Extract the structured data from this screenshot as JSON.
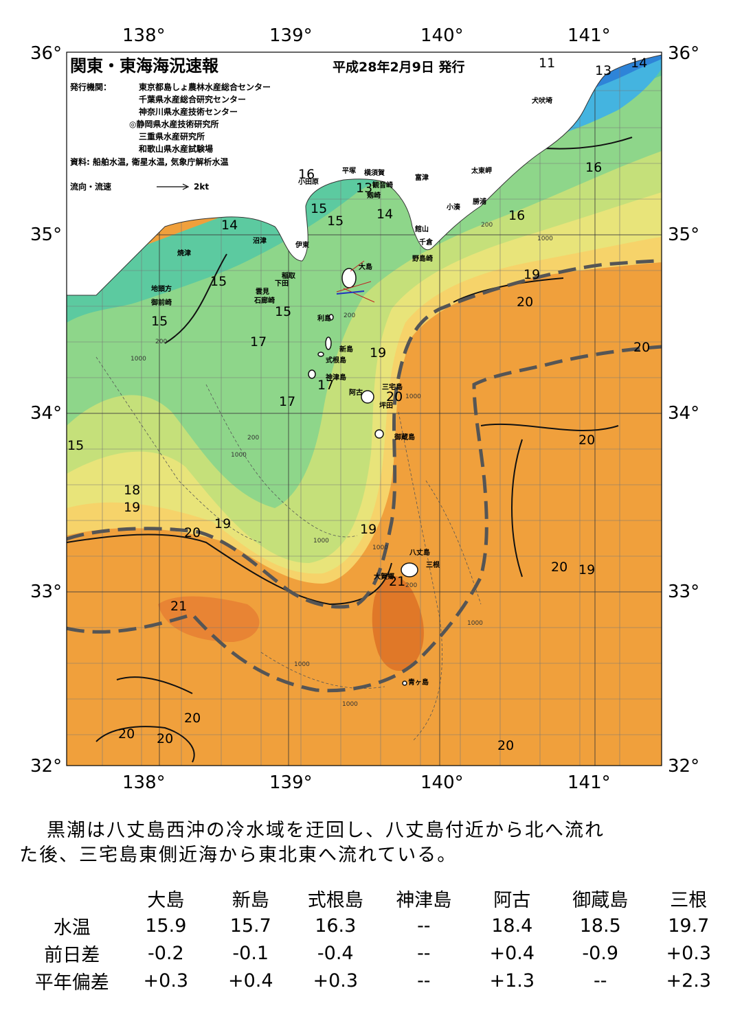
{
  "map": {
    "title": "関東・東海海況速報",
    "date": "平成28年2月9日 発行",
    "publisher_label": "発行機関：",
    "publishers": [
      "東京都島しょ農林水産総合センター",
      "千葉県水産総合研究センター",
      "神奈川県水産技術センター",
      "◎静岡県水産技術研究所",
      "三重県水産研究所",
      "和歌山県水産試験場"
    ],
    "source": "資料: 船舶水温, 衛星水温, 気象庁解析水温",
    "current_legend": "流向・流速",
    "current_scale": "2kt",
    "lon_labels": [
      "138°",
      "139°",
      "140°",
      "141°"
    ],
    "lat_labels": [
      "36°",
      "35°",
      "34°",
      "33°",
      "32°"
    ],
    "place_names": [
      "犬吠埼",
      "太東岬",
      "勝浦",
      "小湊",
      "富津",
      "横須賀",
      "観音崎",
      "剱崎",
      "平塚",
      "小田原",
      "館山",
      "千倉",
      "野島崎",
      "沼津",
      "伊東",
      "大島",
      "焼津",
      "稲取",
      "下田",
      "雲見",
      "石廊崎",
      "地頭方",
      "御前崎",
      "利島",
      "新島",
      "式根島",
      "神津島",
      "三宅島",
      "阿古",
      "坪田",
      "御蔵島",
      "八丈島",
      "三根",
      "大賀郷",
      "青ヶ島"
    ],
    "temperature_labels": [
      "11",
      "13",
      "14",
      "16",
      "16",
      "16",
      "13",
      "14",
      "15",
      "15",
      "14",
      "15",
      "15",
      "15",
      "19",
      "20",
      "20",
      "17",
      "19",
      "17",
      "20",
      "17",
      "15",
      "20",
      "18",
      "19",
      "20",
      "19",
      "19",
      "20",
      "19",
      "21",
      "21",
      "20",
      "20",
      "20",
      "20"
    ],
    "depth_labels": [
      "200",
      "1000",
      "200",
      "1000",
      "200",
      "1000",
      "200",
      "1000",
      "1000",
      "1000",
      "1000",
      "200",
      "1000",
      "1000"
    ]
  },
  "summary": {
    "line1": "黒潮は八丈島西沖の冷水域を迂回し、八丈島付近から北へ流れ",
    "line2": "た後、三宅島東側近海から東北東へ流れている。"
  },
  "table": {
    "columns": [
      "大島",
      "新島",
      "式根島",
      "神津島",
      "阿古",
      "御蔵島",
      "三根"
    ],
    "rows": [
      {
        "label": "水温",
        "values": [
          "15.9",
          "15.7",
          "16.3",
          "--",
          "18.4",
          "18.5",
          "19.7"
        ]
      },
      {
        "label": "前日差",
        "values": [
          "-0.2",
          "-0.1",
          "-0.4",
          "--",
          "+0.4",
          "-0.9",
          "+0.3"
        ]
      },
      {
        "label": "平年偏差",
        "values": [
          "+0.3",
          "+0.4",
          "+0.3",
          "--",
          "+1.3",
          "--",
          "+2.3"
        ]
      }
    ]
  }
}
